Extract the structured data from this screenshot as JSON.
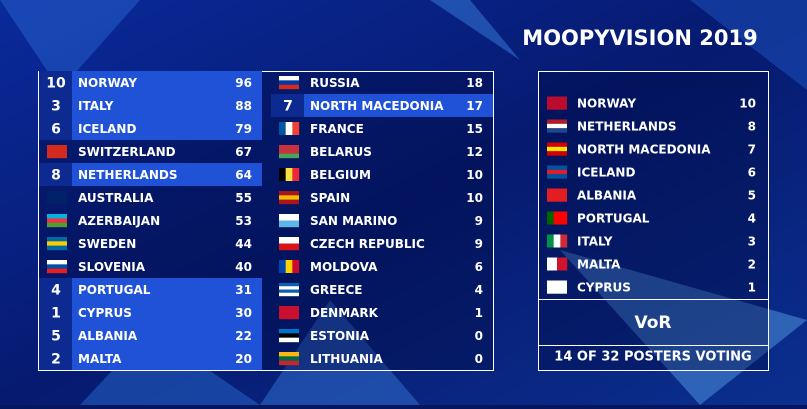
{
  "title": "MOOPYVISION 2019",
  "scoreboard": {
    "columns": [
      [
        {
          "badge": 10,
          "country": "NORWAY",
          "points": 96
        },
        {
          "badge": 3,
          "country": "ITALY",
          "points": 88
        },
        {
          "badge": 6,
          "country": "ICELAND",
          "points": 79
        },
        {
          "country": "SWITZERLAND",
          "points": 67
        },
        {
          "badge": 8,
          "country": "NETHERLANDS",
          "points": 64
        },
        {
          "country": "AUSTRALIA",
          "points": 55
        },
        {
          "country": "AZERBAIJAN",
          "points": 53
        },
        {
          "country": "SWEDEN",
          "points": 44
        },
        {
          "country": "SLOVENIA",
          "points": 40
        },
        {
          "badge": 4,
          "country": "PORTUGAL",
          "points": 31
        },
        {
          "badge": 1,
          "country": "CYPRUS",
          "points": 30
        },
        {
          "badge": 5,
          "country": "ALBANIA",
          "points": 22
        },
        {
          "badge": 2,
          "country": "MALTA",
          "points": 20
        }
      ],
      [
        {
          "country": "RUSSIA",
          "points": 18
        },
        {
          "badge": 7,
          "country": "NORTH MACEDONIA",
          "points": 17
        },
        {
          "country": "FRANCE",
          "points": 15
        },
        {
          "country": "BELARUS",
          "points": 12
        },
        {
          "country": "BELGIUM",
          "points": 10
        },
        {
          "country": "SPAIN",
          "points": 10
        },
        {
          "country": "SAN MARINO",
          "points": 9
        },
        {
          "country": "CZECH REPUBLIC",
          "points": 9
        },
        {
          "country": "MOLDOVA",
          "points": 6
        },
        {
          "country": "GREECE",
          "points": 4
        },
        {
          "country": "DENMARK",
          "points": 1
        },
        {
          "country": "ESTONIA",
          "points": 0
        },
        {
          "country": "LITHUANIA",
          "points": 0
        }
      ]
    ]
  },
  "votes": {
    "rows": [
      {
        "country": "NORWAY",
        "points": 10
      },
      {
        "country": "NETHERLANDS",
        "points": 8
      },
      {
        "country": "NORTH MACEDONIA",
        "points": 7
      },
      {
        "country": "ICELAND",
        "points": 6
      },
      {
        "country": "ALBANIA",
        "points": 5
      },
      {
        "country": "PORTUGAL",
        "points": 4
      },
      {
        "country": "ITALY",
        "points": 3
      },
      {
        "country": "MALTA",
        "points": 2
      },
      {
        "country": "CYPRUS",
        "points": 1
      }
    ],
    "voter": "VoR",
    "footer": "14 OF 32 POSTERS VOTING"
  }
}
